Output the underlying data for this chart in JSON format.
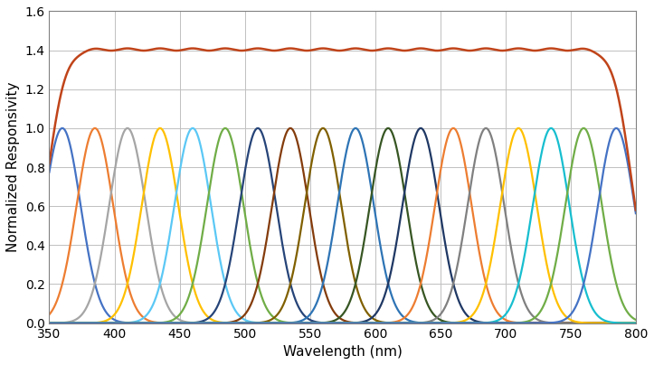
{
  "x_min": 350,
  "x_max": 800,
  "y_min": 0,
  "y_max": 1.6,
  "x_ticks": [
    350,
    400,
    450,
    500,
    550,
    600,
    650,
    700,
    750,
    800
  ],
  "y_ticks": [
    0,
    0.2,
    0.4,
    0.6,
    0.8,
    1.0,
    1.2,
    1.4,
    1.6
  ],
  "xlabel": "Wavelength (nm)",
  "ylabel": "Normalized Responsivity",
  "gaussian_centers": [
    360,
    385,
    410,
    435,
    460,
    485,
    510,
    535,
    560,
    585,
    610,
    635,
    660,
    685,
    710,
    735,
    760,
    785
  ],
  "gaussian_sigma": 14,
  "gaussian_amplitude": 1.0,
  "sum_color": "#C0441A",
  "sum_linewidth": 1.8,
  "gaussian_linewidth": 1.6,
  "colors": [
    "#4472C4",
    "#ED7D31",
    "#A5A5A5",
    "#FFC000",
    "#5BC8F5",
    "#70AD47",
    "#264478",
    "#843C0C",
    "#806000",
    "#2E74B5",
    "#375623",
    "#1F3864",
    "#ED7D31",
    "#808080",
    "#FFC000",
    "#17BECF",
    "#70AD47",
    "#4472C4"
  ],
  "background_color": "#ffffff",
  "grid_color": "#C0C0C0",
  "figsize": [
    7.23,
    4.04
  ],
  "dpi": 100
}
